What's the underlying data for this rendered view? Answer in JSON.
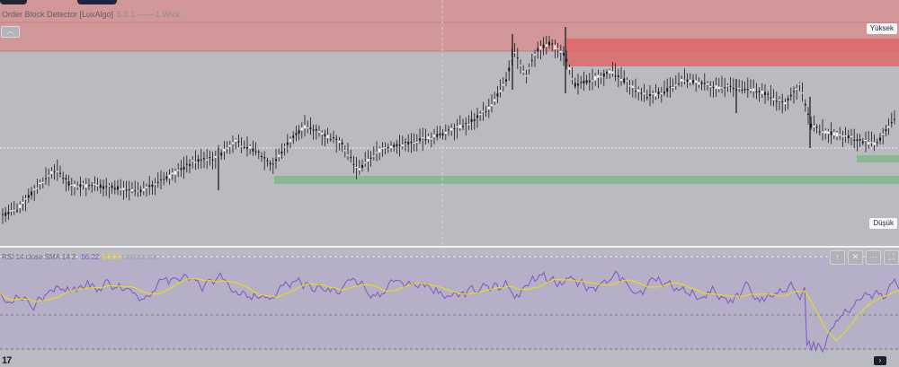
{
  "indicator": {
    "title": "Order Block Detector [LuxAlgo]",
    "params": "5 3 1 —— 1 Wick"
  },
  "price_scale": {
    "upper_label": "Yüksek",
    "lower_label": "Düşük"
  },
  "rsi": {
    "label": "RSI 14 close SMA 14 2",
    "value_rsi": "56.22",
    "value_ma": "54.09",
    "na_values": "n/a n/a n/a"
  },
  "pane_buttons": [
    "↑",
    "✕",
    "···",
    "⛶"
  ],
  "colors": {
    "bg": "#b9bbc0",
    "bearish_zone": "#d98b8c",
    "bearish_block": "#e06464",
    "bullish_block": "#7fb98a",
    "rsi_line": "#7e57c2",
    "rsi_ma": "#f0e000",
    "rsi_band": "#b3a7cc"
  },
  "icons": {
    "logo": "tradingview-logo",
    "collapse": "chevron-up-icon",
    "scroll": "chevron-right-icon"
  },
  "tv_logo_text": "17"
}
